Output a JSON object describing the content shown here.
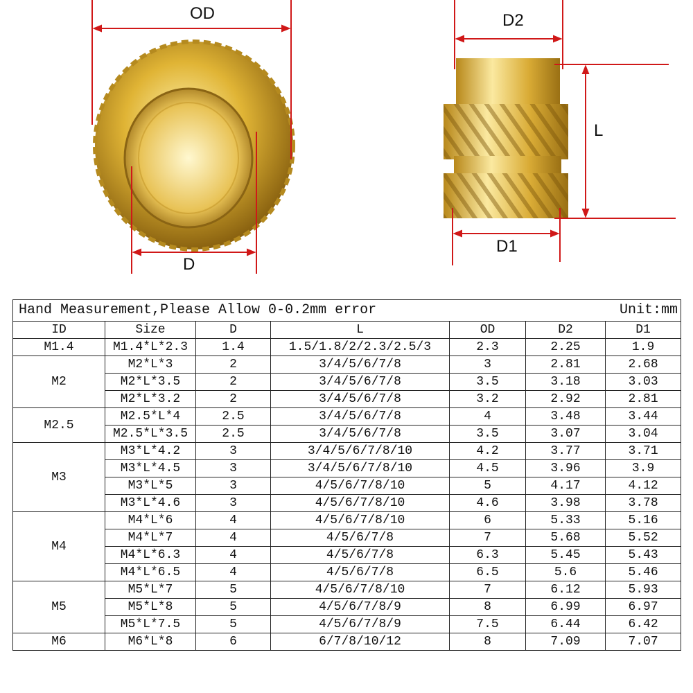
{
  "diagram": {
    "labels": {
      "od": "OD",
      "d": "D",
      "d2": "D2",
      "l": "L",
      "d1": "D1"
    },
    "colors": {
      "dimension_line": "#d01818",
      "brass": "#d4a62a"
    }
  },
  "table": {
    "title": "Hand Measurement,Please Allow 0-0.2mm error",
    "unit": "Unit:mm",
    "columns": [
      "ID",
      "Size",
      "D",
      "L",
      "OD",
      "D2",
      "D1"
    ],
    "groups": [
      {
        "id": "M1.4",
        "rows": [
          [
            "M1.4*L*2.3",
            "1.4",
            "1.5/1.8/2/2.3/2.5/3",
            "2.3",
            "2.25",
            "1.9"
          ]
        ]
      },
      {
        "id": "M2",
        "rows": [
          [
            "M2*L*3",
            "2",
            "3/4/5/6/7/8",
            "3",
            "2.81",
            "2.68"
          ],
          [
            "M2*L*3.5",
            "2",
            "3/4/5/6/7/8",
            "3.5",
            "3.18",
            "3.03"
          ],
          [
            "M2*L*3.2",
            "2",
            "3/4/5/6/7/8",
            "3.2",
            "2.92",
            "2.81"
          ]
        ]
      },
      {
        "id": "M2.5",
        "rows": [
          [
            "M2.5*L*4",
            "2.5",
            "3/4/5/6/7/8",
            "4",
            "3.48",
            "3.44"
          ],
          [
            "M2.5*L*3.5",
            "2.5",
            "3/4/5/6/7/8",
            "3.5",
            "3.07",
            "3.04"
          ]
        ]
      },
      {
        "id": "M3",
        "rows": [
          [
            "M3*L*4.2",
            "3",
            "3/4/5/6/7/8/10",
            "4.2",
            "3.77",
            "3.71"
          ],
          [
            "M3*L*4.5",
            "3",
            "3/4/5/6/7/8/10",
            "4.5",
            "3.96",
            "3.9"
          ],
          [
            "M3*L*5",
            "3",
            "4/5/6/7/8/10",
            "5",
            "4.17",
            "4.12"
          ],
          [
            "M3*L*4.6",
            "3",
            "4/5/6/7/8/10",
            "4.6",
            "3.98",
            "3.78"
          ]
        ]
      },
      {
        "id": "M4",
        "rows": [
          [
            "M4*L*6",
            "4",
            "4/5/6/7/8/10",
            "6",
            "5.33",
            "5.16"
          ],
          [
            "M4*L*7",
            "4",
            "4/5/6/7/8",
            "7",
            "5.68",
            "5.52"
          ],
          [
            "M4*L*6.3",
            "4",
            "4/5/6/7/8",
            "6.3",
            "5.45",
            "5.43"
          ],
          [
            "M4*L*6.5",
            "4",
            "4/5/6/7/8",
            "6.5",
            "5.6",
            "5.46"
          ]
        ]
      },
      {
        "id": "M5",
        "rows": [
          [
            "M5*L*7",
            "5",
            "4/5/6/7/8/10",
            "7",
            "6.12",
            "5.93"
          ],
          [
            "M5*L*8",
            "5",
            "4/5/6/7/8/9",
            "8",
            "6.99",
            "6.97"
          ],
          [
            "M5*L*7.5",
            "5",
            "4/5/6/7/8/9",
            "7.5",
            "6.44",
            "6.42"
          ]
        ]
      },
      {
        "id": "M6",
        "rows": [
          [
            "M6*L*8",
            "6",
            "6/7/8/10/12",
            "8",
            "7.09",
            "7.07"
          ]
        ]
      }
    ]
  }
}
